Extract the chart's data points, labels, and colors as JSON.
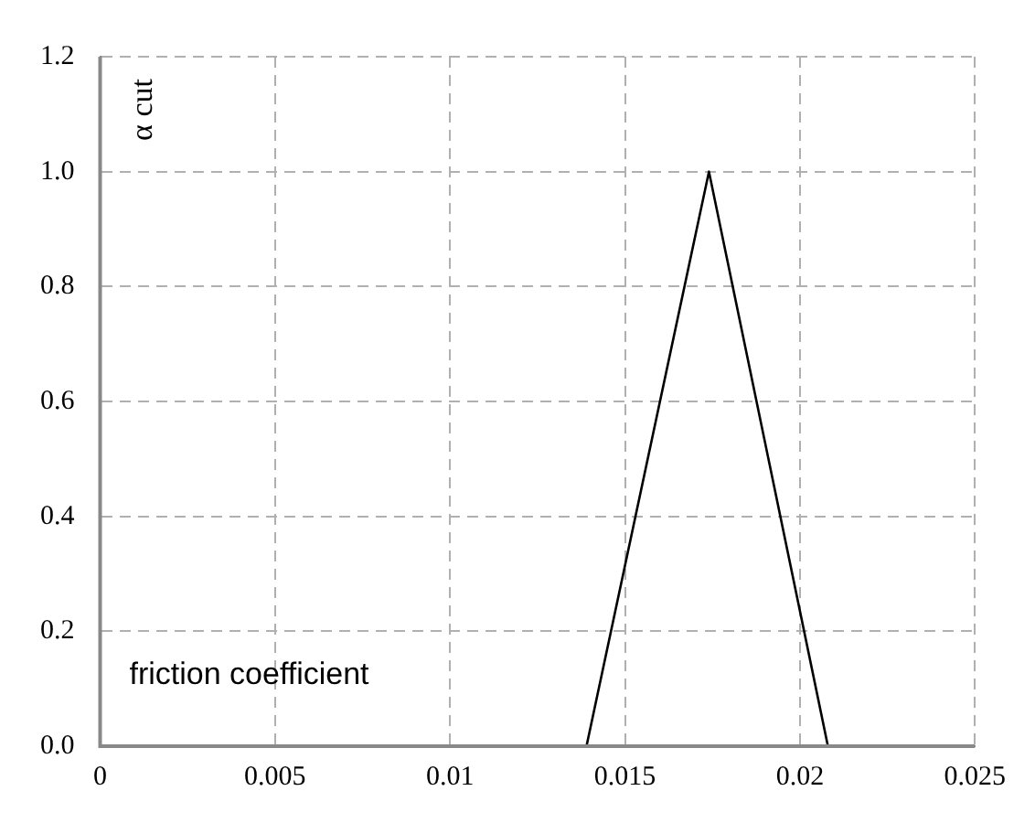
{
  "chart_data": {
    "type": "line",
    "xlabel": "friction coefficient",
    "ylabel": "α cut",
    "series": [
      {
        "color": "#000000",
        "x": [
          0.0139,
          0.0174,
          0.0208
        ],
        "values": [
          0,
          1,
          0
        ]
      }
    ],
    "xlim": [
      0,
      0.025
    ],
    "xticks": [
      0,
      0.005,
      0.01,
      0.015,
      0.02,
      0.025
    ],
    "ylim": [
      0,
      1.2
    ],
    "yticks": [
      {
        "value": 0,
        "label": "0.0"
      },
      {
        "value": 0.2,
        "label": "0.2"
      },
      {
        "value": 0.4,
        "label": "0.4"
      },
      {
        "value": 0.6,
        "label": "0.6"
      },
      {
        "value": 0.8,
        "label": "0.8"
      },
      {
        "value": 1,
        "label": "1.0"
      },
      {
        "value": 1.2,
        "label": "1.2"
      }
    ],
    "grid": true,
    "legend": false,
    "marker": "none",
    "line_style": "solid"
  }
}
